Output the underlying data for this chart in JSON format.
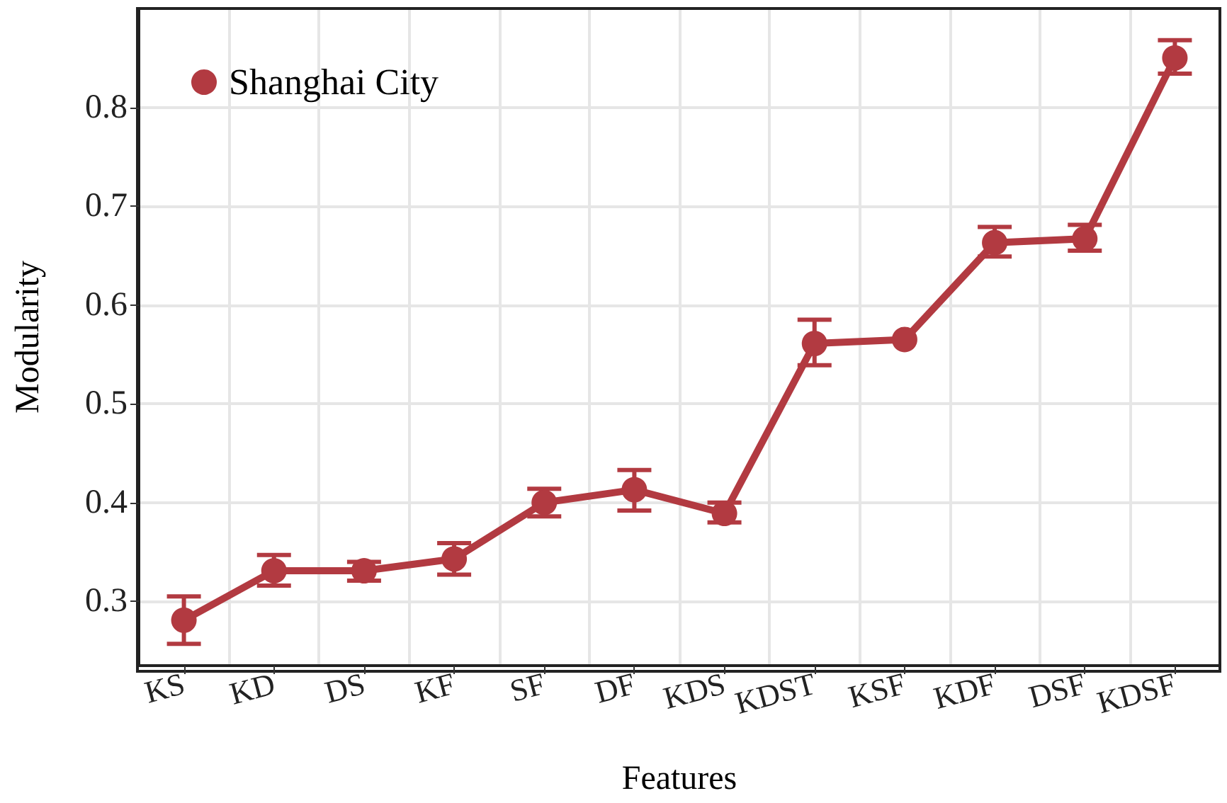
{
  "chart_data": {
    "type": "line",
    "xlabel": "Features",
    "ylabel": "Modularity",
    "categories": [
      "KS",
      "KD",
      "DS",
      "KF",
      "SF",
      "DF",
      "KDS",
      "KDST",
      "KSF",
      "KDF",
      "DSF",
      "KDSF"
    ],
    "series": [
      {
        "name": "Shanghai City",
        "color": "#b23a41",
        "values": [
          0.281,
          0.331,
          0.331,
          0.343,
          0.4,
          0.413,
          0.389,
          0.561,
          0.565,
          0.663,
          0.667,
          0.85
        ],
        "errors": [
          [
            0.257,
            0.305
          ],
          [
            0.316,
            0.347
          ],
          [
            0.321,
            0.34
          ],
          [
            0.327,
            0.359
          ],
          [
            0.386,
            0.414
          ],
          [
            0.392,
            0.433
          ],
          [
            0.38,
            0.4
          ],
          [
            0.539,
            0.585
          ],
          null,
          [
            0.649,
            0.679
          ],
          [
            0.655,
            0.681
          ],
          [
            0.834,
            0.868
          ]
        ]
      }
    ],
    "ylim": [
      0.235,
      0.9
    ],
    "yticks": [
      0.3,
      0.4,
      0.5,
      0.6,
      0.7,
      0.8
    ],
    "grid": true,
    "legend": "top left",
    "marker": "circle",
    "line_style": "solid"
  }
}
